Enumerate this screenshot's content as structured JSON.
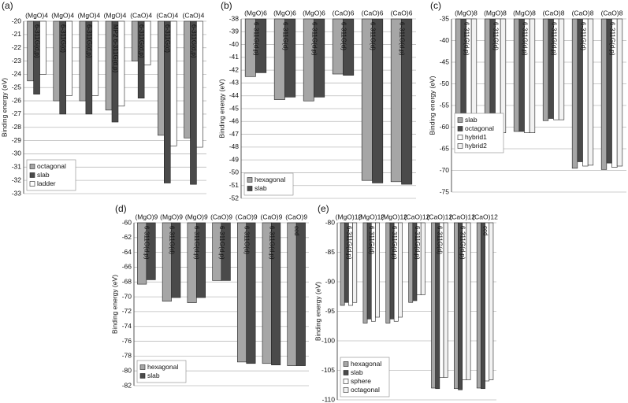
{
  "chart_data": [
    {
      "type": "bar",
      "panel": "(a)",
      "y_label": "Binding energy (eV)",
      "legend": "lower left",
      "categories": [
        "(MgO)4",
        "(MgO)4",
        "(MgO)4",
        "(MgO)4",
        "(CaO)4",
        "(CaO)4",
        "(CaO)4"
      ],
      "methods": [
        "6-311G(d,p)",
        "6-311G(d)",
        "6-311G(d,p)",
        "MP2 6-311G(d,p)",
        "6-311G(d,p)",
        "6-311G(d)",
        "6-311G(d,p)"
      ],
      "series": [
        {
          "name": "octagonal",
          "color": "#a6a6a6",
          "values": [
            -24.5,
            -26.0,
            -26.0,
            -26.7,
            -23.0,
            -28.6,
            -28.8
          ]
        },
        {
          "name": "slab",
          "color": "#4a4a4a",
          "values": [
            -25.5,
            -27.0,
            -27.0,
            -27.6,
            -25.8,
            -32.2,
            -32.3
          ]
        },
        {
          "name": "ladder",
          "color": "#ffffff",
          "values": [
            -24.0,
            -25.6,
            -25.6,
            -26.4,
            -23.3,
            -29.4,
            -29.5
          ]
        }
      ],
      "ylim": [
        -33,
        -20
      ],
      "yticks": [
        -33,
        -32,
        -31,
        -30,
        -29,
        -28,
        -27,
        -26,
        -25,
        -24,
        -23,
        -22,
        -21,
        -20
      ],
      "grid": true
    },
    {
      "type": "bar",
      "panel": "(b)",
      "y_label": "Binding energy (eV)",
      "legend": "lower left",
      "categories": [
        "(MgO)6",
        "(MgO)6",
        "(MgO)6",
        "(CaO)6",
        "(CaO)6",
        "(CaO)6"
      ],
      "methods": [
        "6-311G(d,p)",
        "6-311G(d)",
        "6-311G(d,p)",
        "6-311G(d)",
        "6-311G(d)",
        "6-311G(d,p)"
      ],
      "series": [
        {
          "name": "hexagonal",
          "color": "#a6a6a6",
          "values": [
            -42.5,
            -44.3,
            -44.4,
            -42.3,
            -50.6,
            -50.7
          ]
        },
        {
          "name": "slab",
          "color": "#4a4a4a",
          "values": [
            -42.2,
            -44.1,
            -44.1,
            -42.4,
            -50.8,
            -50.9
          ]
        }
      ],
      "ylim": [
        -52,
        -38
      ],
      "yticks": [
        -52,
        -51,
        -50,
        -49,
        -48,
        -47,
        -46,
        -45,
        -44,
        -43,
        -42,
        -41,
        -40,
        -39,
        -38
      ],
      "grid": true
    },
    {
      "type": "bar",
      "panel": "(c)",
      "y_label": "Binding energy (eV)",
      "legend": "center left",
      "categories": [
        "(MgO)8",
        "(MgO)8",
        "(MgO)8",
        "(CaO)8",
        "(CaO)8",
        "(CaO)8"
      ],
      "methods": [
        "6-311G(d,p)",
        "6-311G(d)",
        "6-311G(d,p)",
        "6-311G(d,p)",
        "6-311G(d)",
        "6-311G(d,p)"
      ],
      "series": [
        {
          "name": "slab",
          "color": "#a6a6a6",
          "values": [
            -58.5,
            -61.0,
            -61.0,
            -58.5,
            -69.5,
            -69.8
          ]
        },
        {
          "name": "octagonal",
          "color": "#4a4a4a",
          "values": [
            -58.5,
            -61.0,
            -61.0,
            -58.0,
            -68.0,
            -68.3
          ]
        },
        {
          "name": "hybrid1",
          "color": "#ffffff",
          "values": [
            -59.0,
            -61.3,
            -61.3,
            -58.3,
            -69.0,
            -69.3
          ]
        },
        {
          "name": "hybrid2",
          "color": "#f2f2f2",
          "values": [
            -59.0,
            -61.3,
            -61.3,
            -58.3,
            -68.8,
            -69.0
          ]
        }
      ],
      "ylim": [
        -75,
        -35
      ],
      "yticks": [
        -75,
        -70,
        -65,
        -60,
        -55,
        -50,
        -45,
        -40,
        -35
      ],
      "grid": true
    },
    {
      "type": "bar",
      "panel": "(d)",
      "y_label": "Binding energy (eV)",
      "legend": "lower left",
      "categories": [
        "(MgO)9",
        "(MgO)9",
        "(MgO)9",
        "(CaO)9",
        "(CaO)9",
        "(CaO)9",
        "(CaO)9"
      ],
      "methods": [
        "6-311G(d,p)",
        "6-311G(d)",
        "6-311G(d,p)",
        "6-311G(d,p)",
        "6-311G(d)",
        "6-311G(d,p)",
        "ccd"
      ],
      "series": [
        {
          "name": "hexagonal",
          "color": "#a6a6a6",
          "values": [
            -68.3,
            -70.6,
            -70.8,
            -67.8,
            -78.8,
            -79.0,
            -79.3
          ]
        },
        {
          "name": "slab",
          "color": "#4a4a4a",
          "values": [
            -67.7,
            -70.1,
            -70.1,
            -67.8,
            -79.0,
            -79.2,
            -79.3
          ]
        }
      ],
      "ylim": [
        -82,
        -60
      ],
      "yticks": [
        -82,
        -80,
        -78,
        -76,
        -74,
        -72,
        -70,
        -68,
        -66,
        -64,
        -62,
        -60
      ],
      "grid": true
    },
    {
      "type": "bar",
      "panel": "(e)",
      "y_label": "Binding energy (eV)",
      "legend": "lower left",
      "categories": [
        "(MgO)12",
        "(MgO)12",
        "(MgO)12",
        "(CaO)12",
        "(CaO)12",
        "(CaO)12",
        "(CaO)12"
      ],
      "methods": [
        "6-311G(d,p)",
        "6-311G(d)",
        "6-311G(d,p)",
        "6-311G(d,p)",
        "6-311G(d)",
        "6-311G(d,p)",
        "ccd"
      ],
      "series": [
        {
          "name": "hexagonal",
          "color": "#a6a6a6",
          "values": [
            -94.0,
            -97.0,
            -97.0,
            -93.5,
            -108.0,
            -108.1,
            -108.0
          ]
        },
        {
          "name": "slab",
          "color": "#4a4a4a",
          "values": [
            -93.5,
            -96.3,
            -96.3,
            -93.2,
            -108.1,
            -108.3,
            -108.1
          ]
        },
        {
          "name": "sphere",
          "color": "#ffffff",
          "values": [
            -94.0,
            -96.7,
            -96.7,
            -92.2,
            -106.2,
            -106.6,
            -106.8
          ]
        },
        {
          "name": "octagonal",
          "color": "#f2f2f2",
          "values": [
            -93.5,
            -96.0,
            -96.0,
            -92.2,
            -106.2,
            -106.6,
            -106.6
          ]
        }
      ],
      "ylim": [
        -110,
        -80
      ],
      "yticks": [
        -110,
        -105,
        -100,
        -95,
        -90,
        -85,
        -80
      ],
      "grid": true
    }
  ]
}
